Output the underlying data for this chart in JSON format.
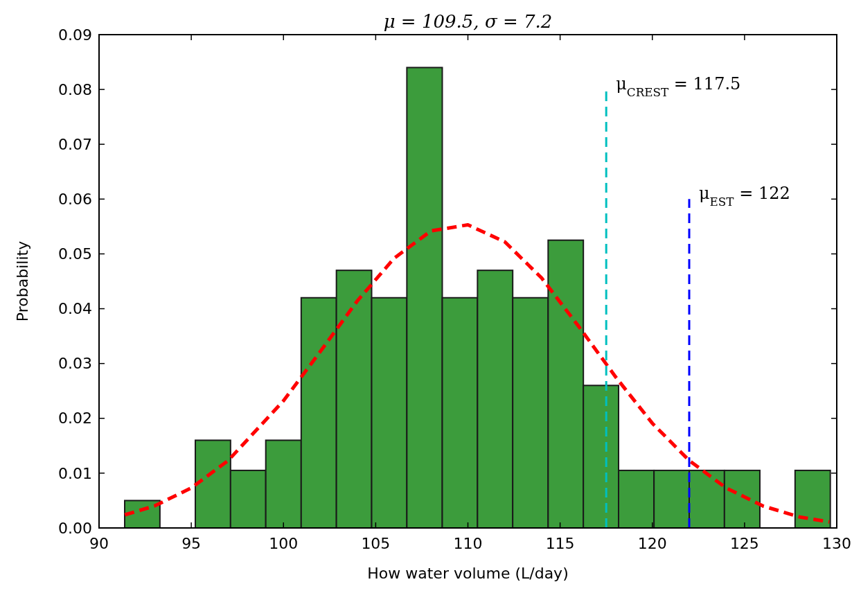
{
  "chart_data": {
    "type": "histogram",
    "title": "μ = 109.5, σ = 7.2",
    "xlabel": "How water volume (L/day)",
    "ylabel": "Probability",
    "bins": [
      91.39,
      93.3,
      95.22,
      97.13,
      99.04,
      100.96,
      102.87,
      104.78,
      106.69,
      108.61,
      110.52,
      112.43,
      114.35,
      116.26,
      118.17,
      120.09,
      122.0,
      123.91,
      125.83,
      127.74,
      129.65
    ],
    "series": [
      {
        "type": "histogram",
        "color": "#3c9c3c",
        "values": [
          0.005,
          0,
          0.016,
          0.0105,
          0.016,
          0.042,
          0.047,
          0.042,
          0.084,
          0.042,
          0.047,
          0.042,
          0.0525,
          0.026,
          0.0105,
          0.0105,
          0.0105,
          0.0105,
          0,
          0.0105
        ]
      },
      {
        "type": "line",
        "color": "#ff0000",
        "line_style": "dashed",
        "x": [
          91.4,
          93,
          95,
          97,
          100,
          102,
          104,
          106,
          108,
          110,
          112,
          114,
          116,
          118,
          120,
          122,
          124,
          126,
          128,
          129.6
        ],
        "values": [
          0.0024,
          0.004,
          0.0073,
          0.0123,
          0.0232,
          0.0322,
          0.0414,
          0.0492,
          0.0542,
          0.0553,
          0.0522,
          0.0456,
          0.0368,
          0.0276,
          0.0191,
          0.0123,
          0.0073,
          0.004,
          0.002,
          0.0011
        ]
      }
    ],
    "ref_lines": [
      {
        "axis": "x",
        "value": 117.5,
        "color": "#00bfbf",
        "line_style": "dashed"
      },
      {
        "axis": "x",
        "value": 122,
        "color": "#0000ff",
        "line_style": "dashed"
      }
    ],
    "annotations": [
      {
        "text": "μ$_{CREST}$ = 117.5",
        "x": 117.5,
        "y": 0.08
      },
      {
        "text": "μ$_{EST}$ = 122",
        "x": 122,
        "y": 0.06
      }
    ],
    "xlim": [
      90,
      130
    ],
    "xticks": [
      90,
      95,
      100,
      105,
      110,
      115,
      120,
      125,
      130
    ],
    "ylim": [
      0,
      0.09
    ],
    "yticks": [
      {
        "value": 0,
        "label": "0.00"
      },
      {
        "value": 0.01,
        "label": "0.01"
      },
      {
        "value": 0.02,
        "label": "0.02"
      },
      {
        "value": 0.03,
        "label": "0.03"
      },
      {
        "value": 0.04,
        "label": "0.04"
      },
      {
        "value": 0.05,
        "label": "0.05"
      },
      {
        "value": 0.06,
        "label": "0.06"
      },
      {
        "value": 0.07,
        "label": "0.07"
      },
      {
        "value": 0.08,
        "label": "0.08"
      },
      {
        "value": 0.09,
        "label": "0.09"
      }
    ],
    "grid": false
  }
}
